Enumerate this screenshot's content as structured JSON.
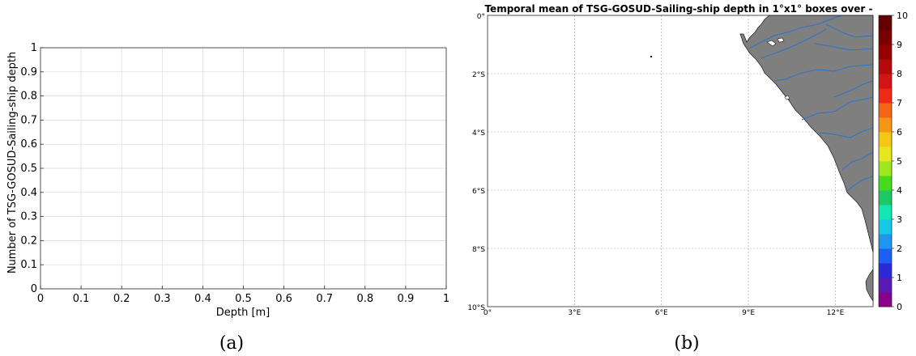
{
  "chart_data": [
    {
      "type": "bar",
      "panel_caption": "(a)",
      "xlabel": "Depth [m]",
      "ylabel": "Number of TSG-GOSUD-Sailing-ship depth",
      "xlim": [
        0,
        1
      ],
      "ylim": [
        0,
        1
      ],
      "x_ticks": [
        "0",
        "0.1",
        "0.2",
        "0.3",
        "0.4",
        "0.5",
        "0.6",
        "0.7",
        "0.8",
        "0.9",
        "1"
      ],
      "y_ticks": [
        "0",
        "0.1",
        "0.2",
        "0.3",
        "0.4",
        "0.5",
        "0.6",
        "0.7",
        "0.8",
        "0.9",
        "1"
      ],
      "grid": true,
      "series": []
    },
    {
      "type": "heatmap",
      "panel_caption": "(b)",
      "title": "Temporal mean of TSG-GOSUD-Sailing-ship depth in 1°x1° boxes over -",
      "lon_range": [
        0,
        13.3
      ],
      "lat_range": [
        -10,
        0
      ],
      "x_ticks": [
        "0°",
        "3°E",
        "6°E",
        "9°E",
        "12°E"
      ],
      "y_ticks": [
        "0°",
        "2°S",
        "4°S",
        "6°S",
        "8°S",
        "10°S"
      ],
      "grid": true,
      "colorbar": {
        "min": 0,
        "max": 10,
        "ticks": [
          "0",
          "1",
          "2",
          "3",
          "4",
          "5",
          "6",
          "7",
          "8",
          "9",
          "10"
        ],
        "colors": [
          "#8a008a",
          "#5a1ab8",
          "#2a2ad8",
          "#1e5ef0",
          "#1e96f0",
          "#14c8e6",
          "#14e6b4",
          "#1ec864",
          "#46dc1e",
          "#a0e61e",
          "#e6e61e",
          "#f5c814",
          "#f59614",
          "#f56414",
          "#f02814",
          "#d21414",
          "#b40a0a",
          "#960000",
          "#7a0000",
          "#640000"
        ]
      },
      "land_color": "#7f7f7f",
      "river_color": "#2f72c4"
    }
  ]
}
